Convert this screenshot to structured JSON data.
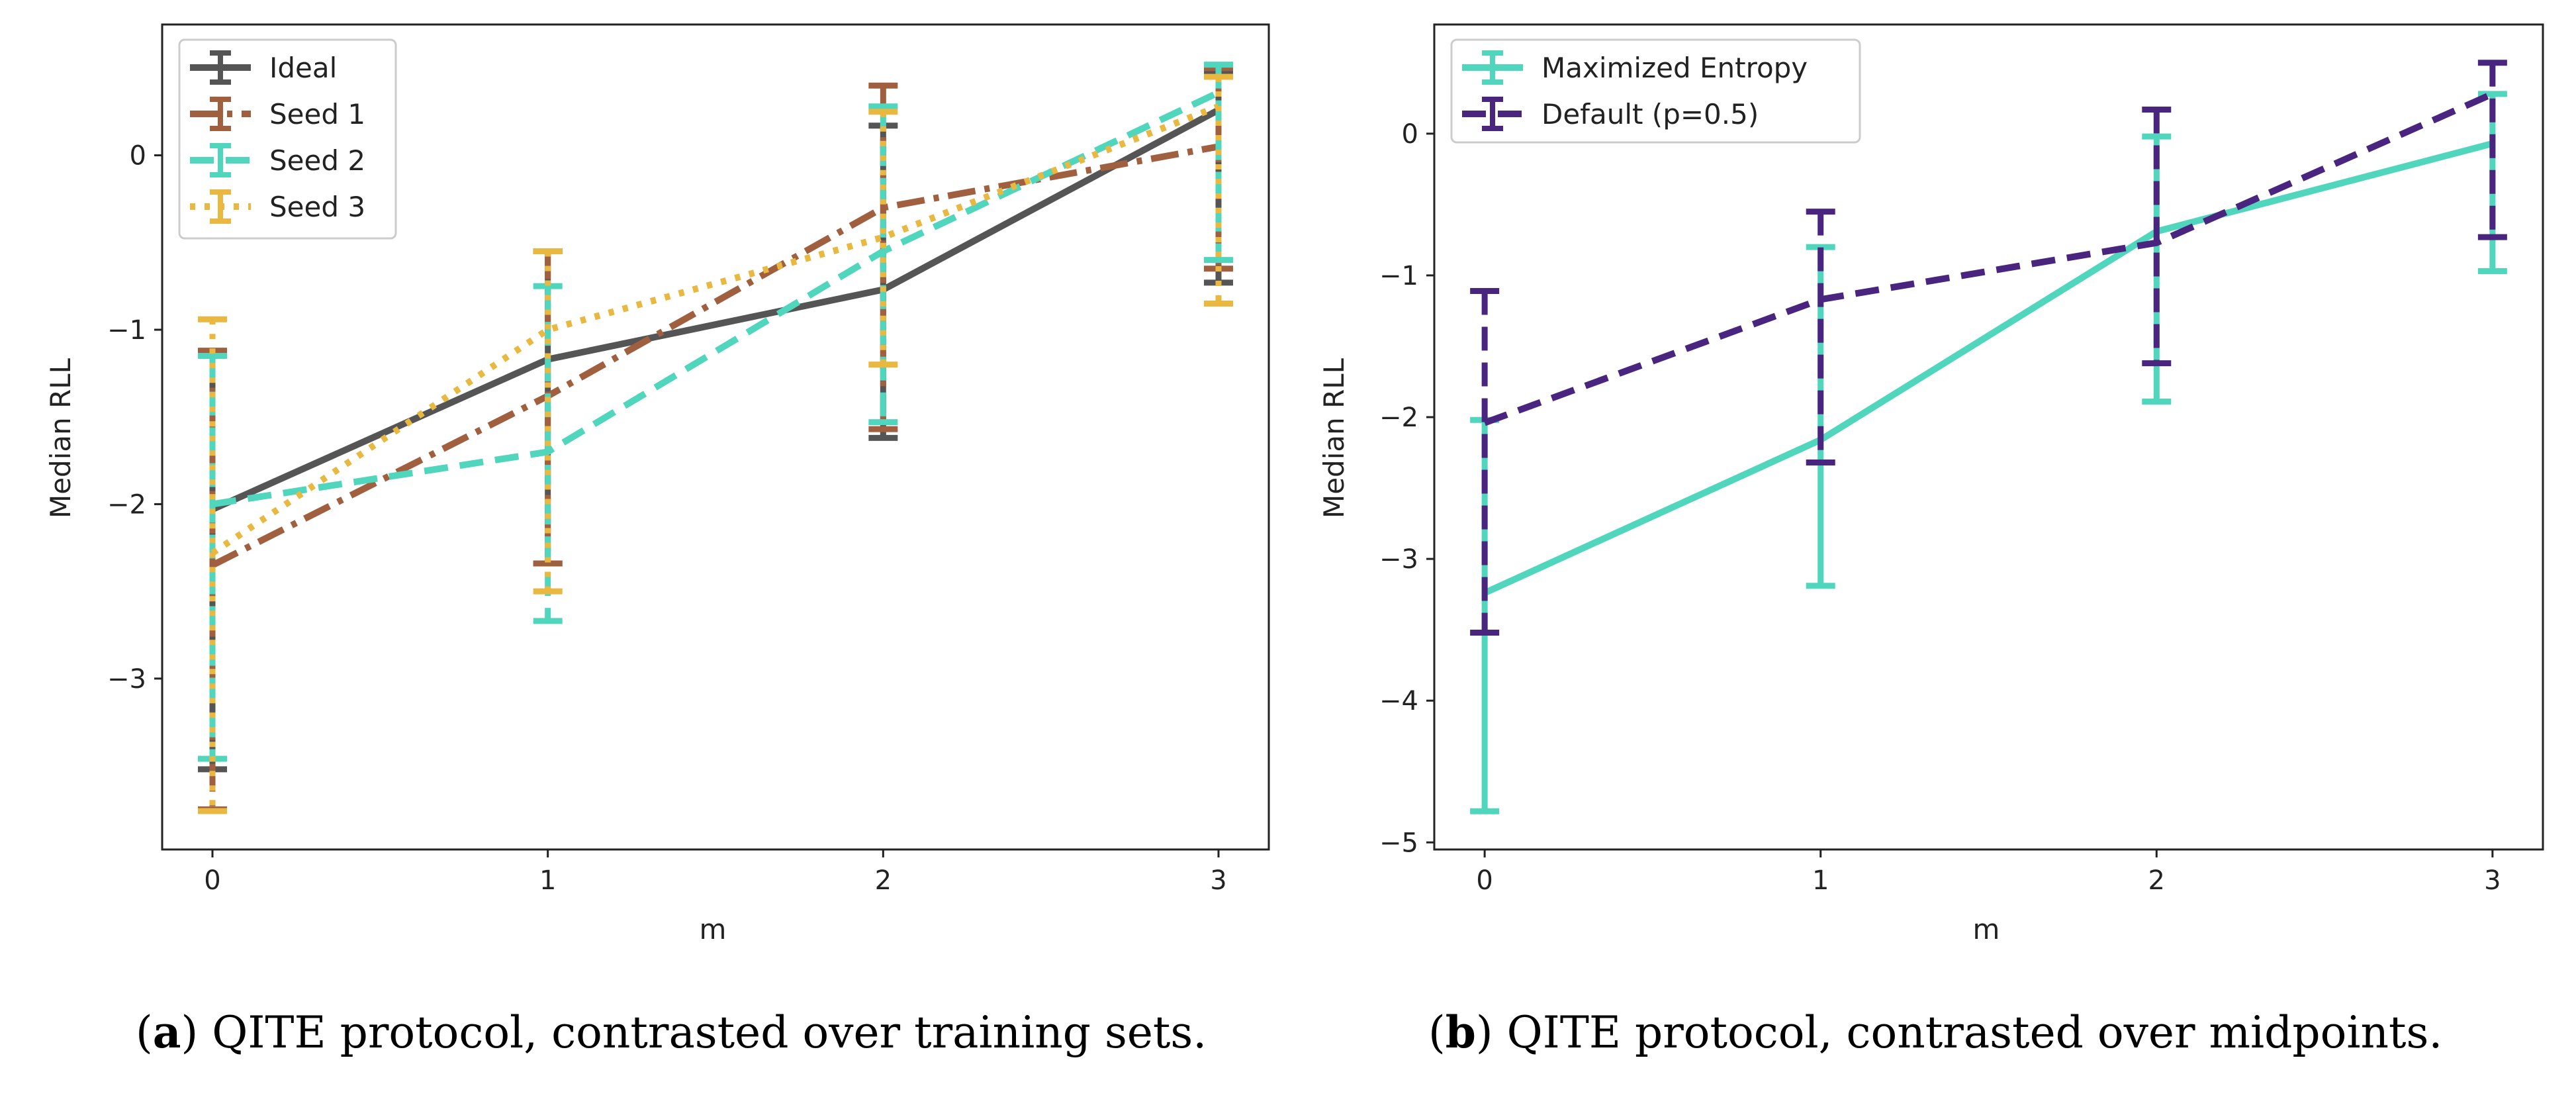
{
  "chart_data": [
    {
      "type": "line",
      "panel": "a",
      "xlabel": "m",
      "ylabel": "Median RLL",
      "x": [
        0,
        1,
        2,
        3
      ],
      "xticks": [
        "0",
        "1",
        "2",
        "3"
      ],
      "yticks": [
        0,
        -1,
        -2,
        -3
      ],
      "ytick_labels": [
        "0",
        "−1",
        "−2",
        "−3"
      ],
      "xlim": [
        -0.15,
        3.15
      ],
      "ylim": [
        -3.98,
        0.75
      ],
      "legend_loc": "upper left",
      "series": [
        {
          "name": "Ideal",
          "color": "#555555",
          "style": "solid",
          "values": [
            -2.03,
            -1.17,
            -0.77,
            0.26
          ],
          "err_low": [
            -3.52,
            -2.34,
            -1.62,
            -0.73
          ],
          "err_high": [
            -1.13,
            -0.55,
            0.17,
            0.48
          ]
        },
        {
          "name": "Seed 1",
          "color": "#a0603f",
          "style": "dashdot",
          "values": [
            -2.35,
            -1.38,
            -0.3,
            0.05
          ],
          "err_low": [
            -3.75,
            -2.34,
            -1.57,
            -0.65
          ],
          "err_high": [
            -1.12,
            -0.55,
            0.4,
            0.5
          ]
        },
        {
          "name": "Seed 2",
          "color": "#4fd6bd",
          "style": "dashed",
          "values": [
            -2.0,
            -1.7,
            -0.55,
            0.36
          ],
          "err_low": [
            -3.46,
            -2.67,
            -1.53,
            -0.6
          ],
          "err_high": [
            -1.15,
            -0.75,
            0.28,
            0.52
          ]
        },
        {
          "name": "Seed 3",
          "color": "#e8b840",
          "style": "dotted",
          "values": [
            -2.28,
            -1.0,
            -0.47,
            0.28
          ],
          "err_low": [
            -3.76,
            -2.5,
            -1.2,
            -0.85
          ],
          "err_high": [
            -0.94,
            -0.55,
            0.25,
            0.45
          ]
        }
      ],
      "caption_label": "a",
      "caption_text": ") QITE protocol, contrasted over training sets.",
      "caption_open": "("
    },
    {
      "type": "line",
      "panel": "b",
      "xlabel": "m",
      "ylabel": "Median RLL",
      "x": [
        0,
        1,
        2,
        3
      ],
      "xticks": [
        "0",
        "1",
        "2",
        "3"
      ],
      "yticks": [
        0,
        -1,
        -2,
        -3,
        -4,
        -5
      ],
      "ytick_labels": [
        "0",
        "−1",
        "−2",
        "−3",
        "−4",
        "−5"
      ],
      "xlim": [
        -0.15,
        3.15
      ],
      "ylim": [
        -5.05,
        0.77
      ],
      "legend_loc": "upper left",
      "series": [
        {
          "name": "Maximized Entropy",
          "color": "#4fd6bd",
          "style": "solid",
          "values": [
            -3.24,
            -2.16,
            -0.69,
            -0.07
          ],
          "err_low": [
            -4.78,
            -3.19,
            -1.89,
            -0.97
          ],
          "err_high": [
            -2.02,
            -0.8,
            -0.02,
            0.28
          ]
        },
        {
          "name": "Default (p=0.5)",
          "color": "#4a2580",
          "style": "dashed",
          "values": [
            -2.04,
            -1.17,
            -0.77,
            0.28
          ],
          "err_low": [
            -3.52,
            -2.32,
            -1.62,
            -0.73
          ],
          "err_high": [
            -1.11,
            -0.55,
            0.17,
            0.5
          ]
        }
      ],
      "caption_label": "b",
      "caption_text": ") QITE protocol, contrasted over midpoints.",
      "caption_open": "("
    }
  ]
}
